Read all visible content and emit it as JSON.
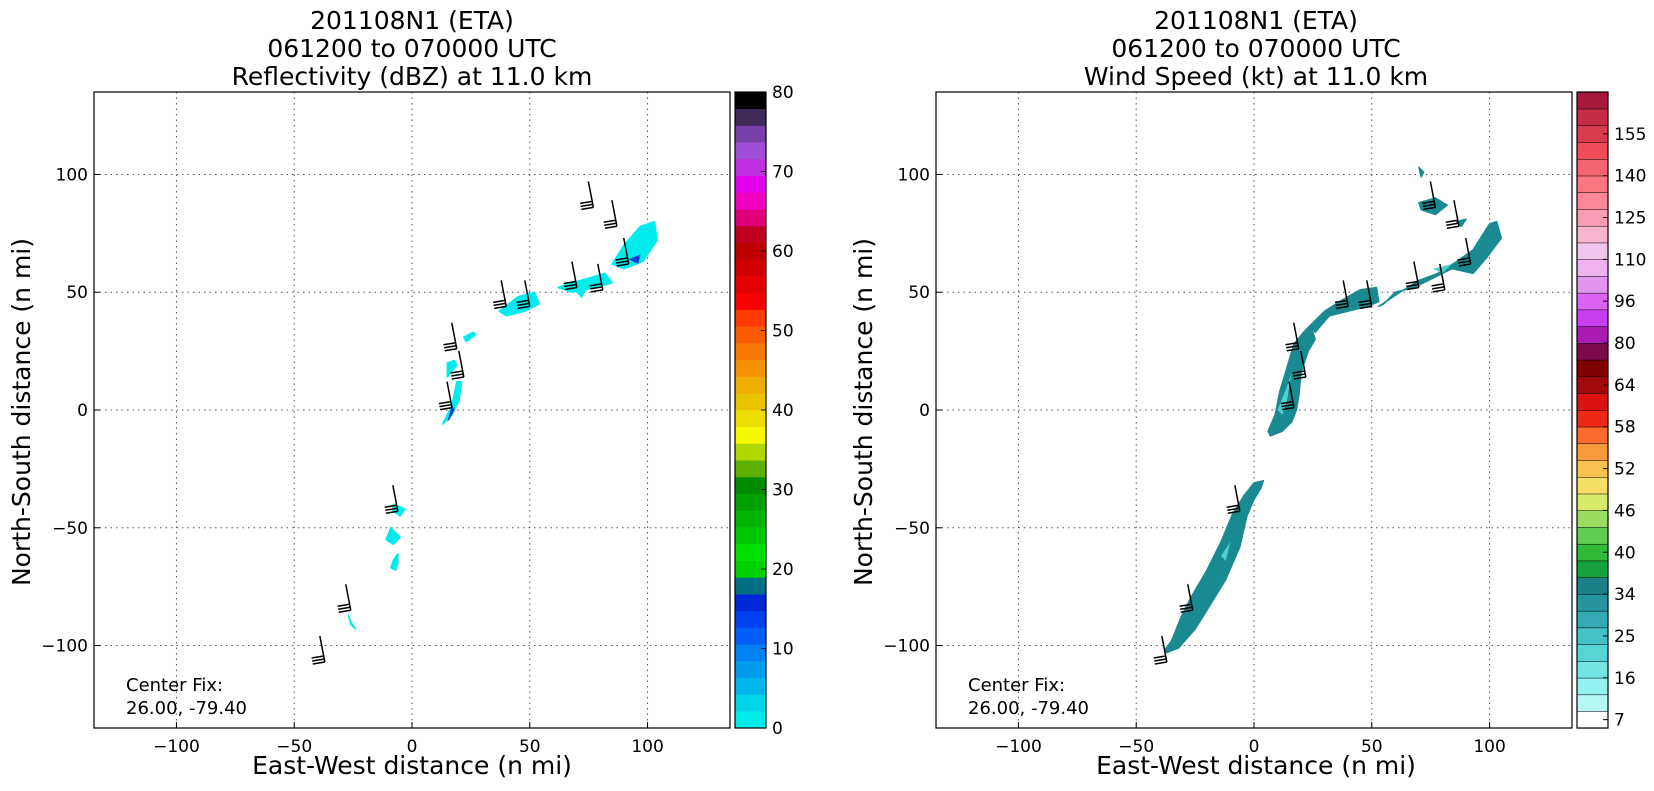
{
  "chart_data": [
    {
      "type": "heatmap",
      "title": [
        "201108N1 (ETA)",
        "061200 to 070000 UTC",
        "Reflectivity (dBZ) at 11.0 km"
      ],
      "xlabel": "East-West distance (n mi)",
      "ylabel": "North-South distance (n mi)",
      "xlim": [
        -135,
        135
      ],
      "ylim": [
        -135,
        135
      ],
      "xticks": [
        -100,
        -50,
        0,
        50,
        100
      ],
      "yticks": [
        -100,
        -50,
        0,
        50,
        100
      ],
      "grid": true,
      "annotation": [
        "Center Fix:",
        "26.00, -79.40"
      ],
      "colorbar": {
        "min": 0,
        "max": 80,
        "ticks": [
          0,
          10,
          20,
          30,
          40,
          50,
          60,
          70,
          80
        ],
        "colors": [
          "#00ecec",
          "#00d6ea",
          "#01b5ed",
          "#019bf0",
          "#0082f4",
          "#0160fa",
          "#0142f0",
          "#0128d8",
          "#036f82",
          "#00d100",
          "#00e000",
          "#00c800",
          "#00b400",
          "#00a000",
          "#008c00",
          "#5fb000",
          "#b0d800",
          "#f7f700",
          "#ecde00",
          "#e7c500",
          "#eead00",
          "#f59200",
          "#f87700",
          "#fb5b00",
          "#ff3a00",
          "#f90000",
          "#e50000",
          "#d00000",
          "#bd0000",
          "#c00020",
          "#e0007a",
          "#f000c0",
          "#e100ec",
          "#c030e0",
          "#a050d8",
          "#7840a8",
          "#3f2a5a",
          "#000000"
        ]
      },
      "shading": "cyan to blue reflectivity, 0-12 dBZ",
      "regions": [
        [
          [
            13,
            -6
          ],
          [
            17,
            2
          ],
          [
            19,
            12
          ],
          [
            21,
            12
          ],
          [
            20,
            4
          ],
          [
            17,
            -2
          ]
        ],
        [
          [
            15,
            14
          ],
          [
            19,
            19
          ],
          [
            18,
            21
          ],
          [
            15,
            20
          ]
        ],
        [
          [
            23,
            29
          ],
          [
            27,
            32
          ],
          [
            26,
            33
          ],
          [
            22,
            31
          ]
        ],
        [
          [
            37,
            42
          ],
          [
            45,
            48
          ],
          [
            52,
            50
          ],
          [
            54,
            45
          ],
          [
            48,
            42
          ],
          [
            40,
            40
          ]
        ],
        [
          [
            62,
            52
          ],
          [
            68,
            54
          ],
          [
            75,
            56
          ],
          [
            82,
            58
          ],
          [
            85,
            54
          ],
          [
            78,
            52
          ],
          [
            68,
            50
          ]
        ],
        [
          [
            85,
            62
          ],
          [
            90,
            70
          ],
          [
            97,
            78
          ],
          [
            103,
            80
          ],
          [
            104,
            72
          ],
          [
            98,
            63
          ],
          [
            90,
            60
          ]
        ],
        [
          [
            70,
            50
          ],
          [
            74,
            52
          ],
          [
            72,
            48
          ]
        ],
        [
          [
            -6,
            -61
          ],
          [
            -8,
            -64
          ],
          [
            -9,
            -67
          ],
          [
            -7,
            -68
          ],
          [
            -6,
            -65
          ]
        ],
        [
          [
            -9,
            -50
          ],
          [
            -5,
            -54
          ],
          [
            -8,
            -57
          ],
          [
            -11,
            -55
          ]
        ],
        [
          [
            -8,
            -40
          ],
          [
            -3,
            -42
          ],
          [
            -5,
            -45
          ],
          [
            -8,
            -43
          ]
        ],
        [
          [
            -27,
            -87
          ],
          [
            -26,
            -91
          ],
          [
            -24,
            -93
          ],
          [
            -26,
            -90
          ]
        ]
      ],
      "barbs": [
        [
          77,
          86
        ],
        [
          87,
          78
        ],
        [
          92,
          62
        ],
        [
          70,
          52
        ],
        [
          81,
          51
        ],
        [
          40,
          44
        ],
        [
          50,
          44
        ],
        [
          19,
          26
        ],
        [
          22,
          14
        ],
        [
          17,
          1
        ],
        [
          -6,
          -43
        ],
        [
          -26,
          -85
        ],
        [
          -37,
          -107
        ]
      ]
    },
    {
      "type": "heatmap",
      "title": [
        "201108N1 (ETA)",
        "061200 to 070000 UTC",
        "Wind Speed (kt) at 11.0 km"
      ],
      "xlabel": "East-West distance (n mi)",
      "ylabel": "North-South distance (n mi)",
      "xlim": [
        -135,
        135
      ],
      "ylim": [
        -135,
        135
      ],
      "xticks": [
        -100,
        -50,
        0,
        50,
        100
      ],
      "yticks": [
        -100,
        -50,
        0,
        50,
        100
      ],
      "grid": true,
      "annotation": [
        "Center Fix:",
        "26.00, -79.40"
      ],
      "colorbar": {
        "ticks": [
          "7",
          "16",
          "25",
          "34",
          "40",
          "46",
          "52",
          "58",
          "64",
          "80",
          "96",
          "110",
          "125",
          "140",
          "155"
        ],
        "colors": [
          "#ffffff",
          "#b5f8f4",
          "#93f1ee",
          "#72e5e3",
          "#57d5d6",
          "#43c2c8",
          "#33aab4",
          "#26959f",
          "#1a818b",
          "#15a23c",
          "#2fbb37",
          "#60cc52",
          "#98dc62",
          "#d8ea6a",
          "#f7df65",
          "#fac150",
          "#f8993c",
          "#fa6a2b",
          "#ec2916",
          "#d91310",
          "#a30a0b",
          "#7e0000",
          "#7d0a49",
          "#a91bb2",
          "#c83ef0",
          "#db63f2",
          "#e294ee",
          "#eeb2ef",
          "#f1c6ed",
          "#f7b4cf",
          "#f99db6",
          "#fb8698",
          "#fb7583",
          "#f56473",
          "#f04b58",
          "#d93c4f",
          "#c62c46",
          "#a8173c"
        ]
      },
      "shading": "teal wind speed, mostly 25-34 kt",
      "regions": [
        [
          [
            -37,
            -103
          ],
          [
            -32,
            -101
          ],
          [
            -25,
            -93
          ],
          [
            -20,
            -85
          ],
          [
            -12,
            -72
          ],
          [
            -6,
            -58
          ],
          [
            -3,
            -45
          ],
          [
            0,
            -38
          ],
          [
            3,
            -33
          ],
          [
            4,
            -30
          ],
          [
            0,
            -31
          ],
          [
            -4,
            -36
          ],
          [
            -9,
            -44
          ],
          [
            -14,
            -56
          ],
          [
            -20,
            -68
          ],
          [
            -27,
            -80
          ],
          [
            -31,
            -88
          ],
          [
            -35,
            -98
          ],
          [
            -38,
            -102
          ]
        ],
        [
          [
            6,
            -9
          ],
          [
            9,
            -2
          ],
          [
            11,
            8
          ],
          [
            14,
            18
          ],
          [
            17,
            28
          ],
          [
            21,
            33
          ],
          [
            24,
            36
          ],
          [
            26,
            30
          ],
          [
            23,
            25
          ],
          [
            20,
            16
          ],
          [
            19,
            6
          ],
          [
            18,
            0
          ],
          [
            16,
            -5
          ],
          [
            12,
            -9
          ],
          [
            7,
            -11
          ]
        ],
        [
          [
            24,
            36
          ],
          [
            30,
            42
          ],
          [
            38,
            47
          ],
          [
            45,
            51
          ],
          [
            52,
            52
          ],
          [
            53,
            46
          ],
          [
            48,
            44
          ],
          [
            40,
            42
          ],
          [
            32,
            40
          ],
          [
            26,
            33
          ]
        ],
        [
          [
            53,
            44
          ],
          [
            62,
            50
          ],
          [
            70,
            55
          ],
          [
            78,
            58
          ],
          [
            86,
            63
          ],
          [
            93,
            68
          ],
          [
            100,
            79
          ],
          [
            103,
            80
          ],
          [
            105,
            73
          ],
          [
            99,
            65
          ],
          [
            93,
            58
          ],
          [
            84,
            60
          ],
          [
            76,
            56
          ],
          [
            68,
            52
          ],
          [
            60,
            50
          ],
          [
            55,
            45
          ]
        ],
        [
          [
            70,
            88
          ],
          [
            77,
            90
          ],
          [
            82,
            87
          ],
          [
            77,
            83
          ],
          [
            71,
            85
          ]
        ],
        [
          [
            70,
            103
          ],
          [
            72,
            101
          ],
          [
            71,
            99
          ]
        ],
        [
          [
            86,
            80
          ],
          [
            90,
            81
          ],
          [
            88,
            78
          ]
        ]
      ],
      "barbs": [
        [
          77,
          86
        ],
        [
          87,
          78
        ],
        [
          92,
          62
        ],
        [
          70,
          52
        ],
        [
          81,
          51
        ],
        [
          40,
          44
        ],
        [
          50,
          44
        ],
        [
          19,
          26
        ],
        [
          22,
          14
        ],
        [
          17,
          1
        ],
        [
          -6,
          -43
        ],
        [
          -26,
          -85
        ],
        [
          -37,
          -107
        ]
      ]
    }
  ]
}
